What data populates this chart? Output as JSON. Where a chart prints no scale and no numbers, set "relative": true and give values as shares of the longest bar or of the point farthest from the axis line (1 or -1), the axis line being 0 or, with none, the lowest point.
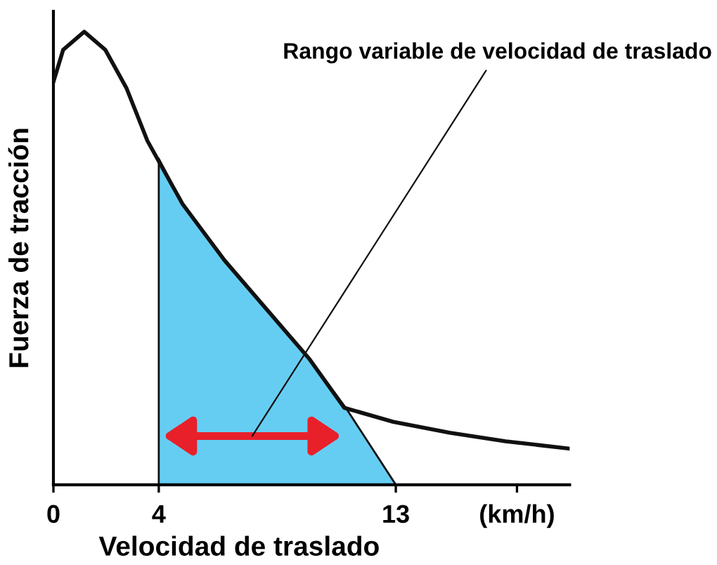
{
  "chart_data": {
    "type": "line",
    "relative": true,
    "xlabel": "Velocidad de traslado",
    "ylabel": "Fuerza de tracción",
    "xlim": [
      0,
      19.6
    ],
    "xticks": [
      0,
      4,
      13,
      {
        "value": 17.6,
        "label": "(km/h)"
      }
    ],
    "series": [
      {
        "type": "area",
        "color": "#66cdf2",
        "x": [
          4,
          4.9,
          6.5,
          8.1,
          9.7,
          11.1,
          13
        ],
        "values": [
          0.72,
          0.62,
          0.495,
          0.387,
          0.279,
          0.17,
          0
        ]
      },
      {
        "color": "#111111",
        "x": [
          0,
          0.37,
          1.17,
          1.97,
          2.77,
          3.57,
          4.9,
          6.5,
          8.1,
          9.7,
          11.04,
          12.9,
          15.04,
          17.17,
          19.57
        ],
        "values": [
          0.889,
          0.96,
          1.0,
          0.96,
          0.876,
          0.759,
          0.62,
          0.495,
          0.387,
          0.279,
          0.17,
          0.139,
          0.115,
          0.096,
          0.08
        ]
      }
    ],
    "annotations": [
      "Rango variable de velocidad de traslado"
    ],
    "grid": false,
    "legend": false,
    "marker": "none",
    "line_style": "solid"
  }
}
